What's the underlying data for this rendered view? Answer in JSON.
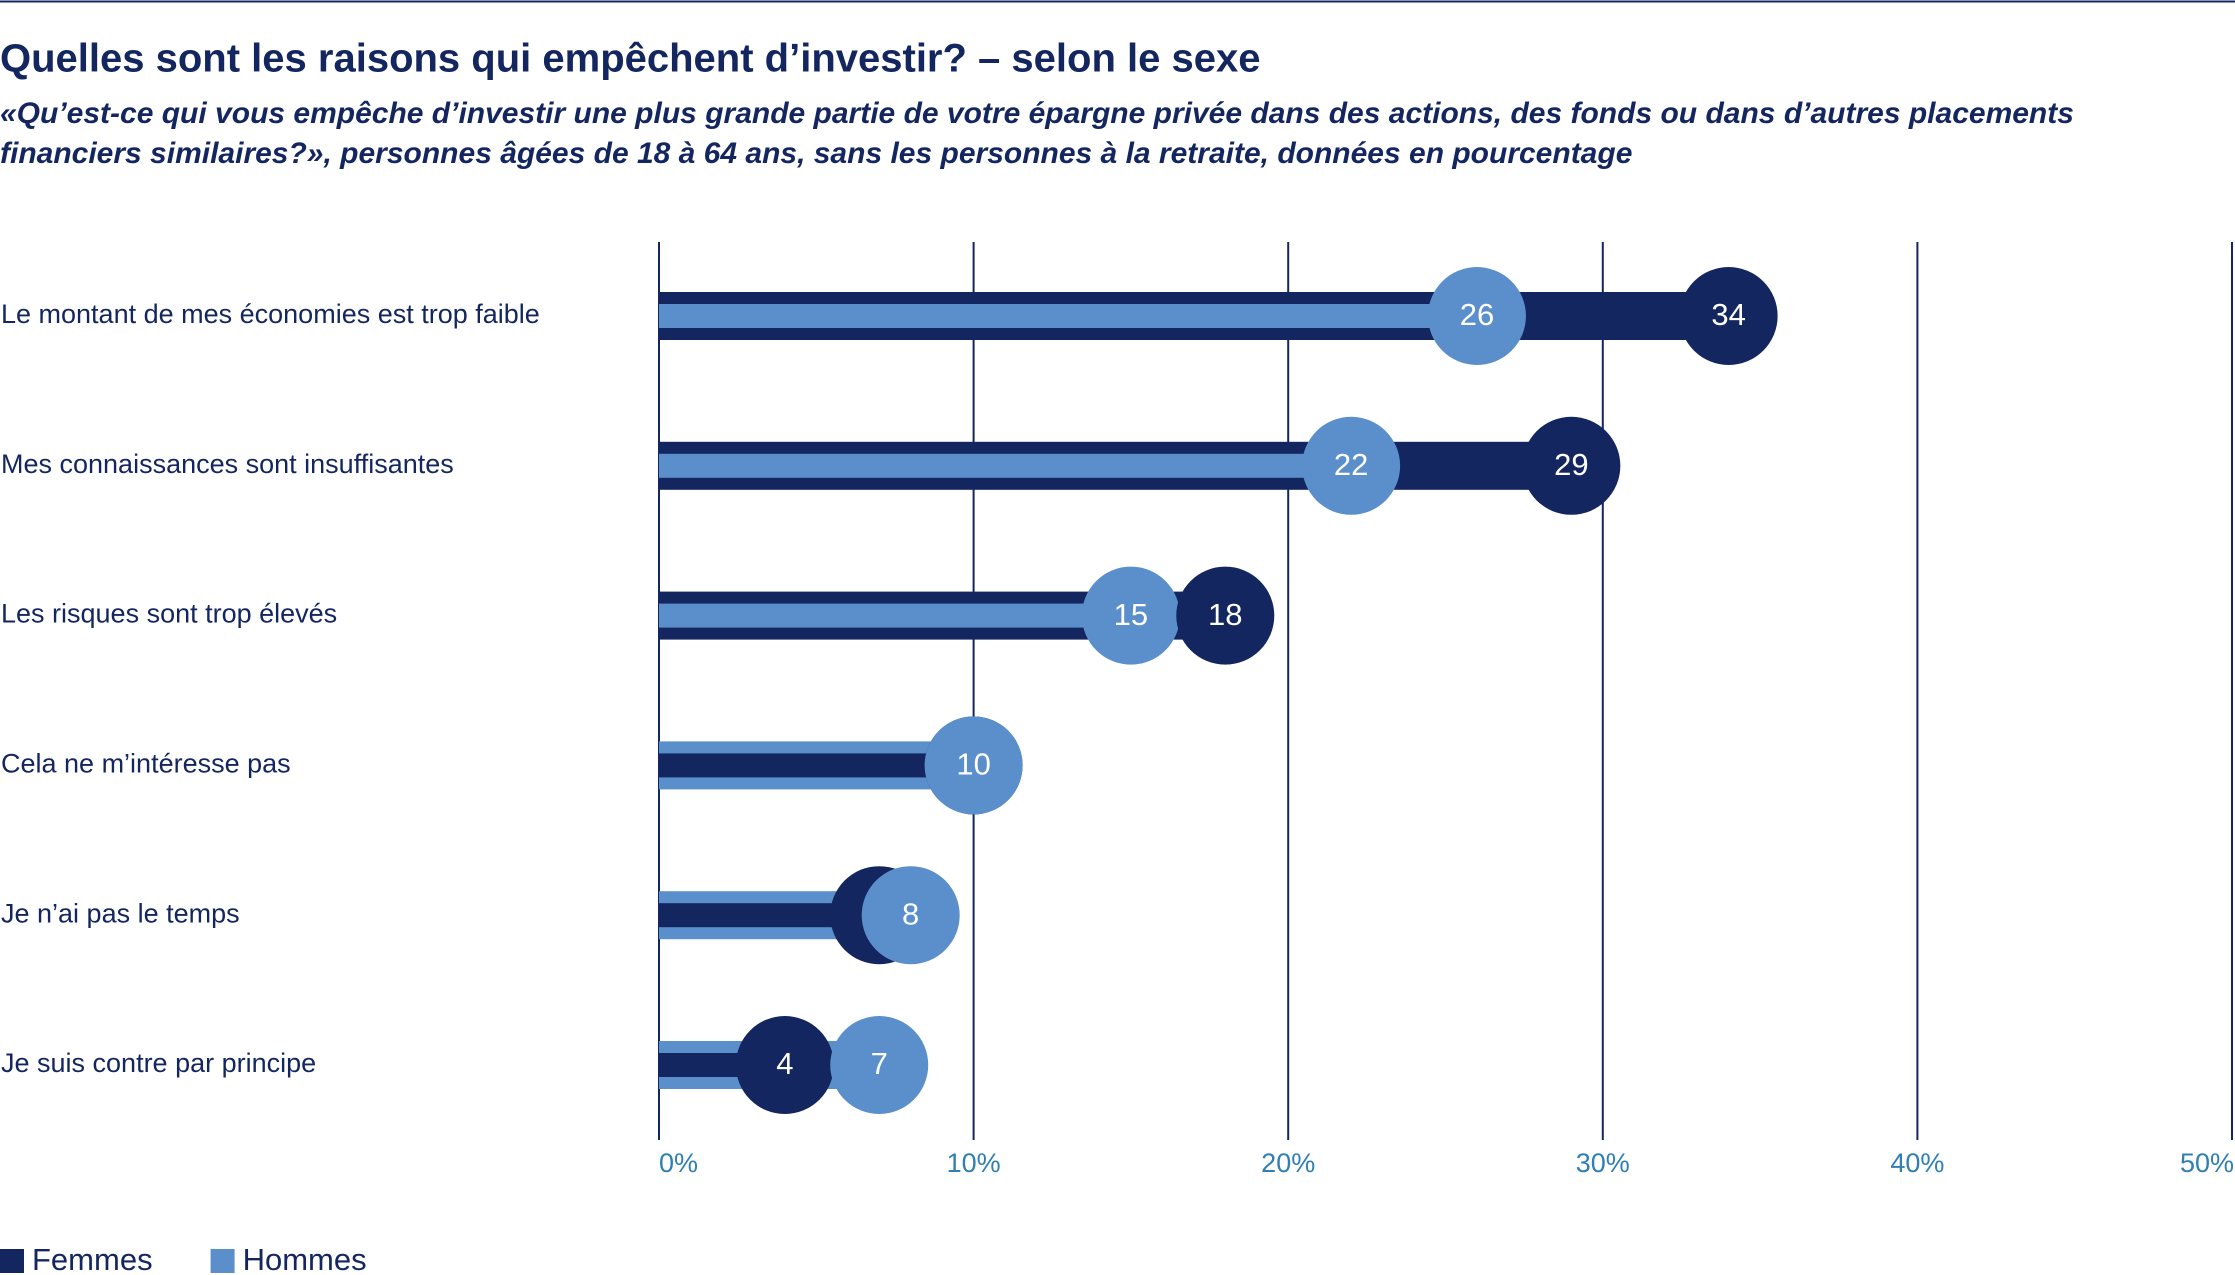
{
  "chart_data": {
    "type": "dot-bar",
    "title": "Quelles sont les raisons qui empêchent d’investir? – selon le sexe",
    "subtitle": [
      "«Qu’est-ce qui vous empêche d’investir une plus grande partie de votre épargne privée dans des actions, des fonds ou dans d’autres placements",
      "financiers similaires?», personnes âgées de 18 à 64 ans, sans les personnes à la retraite, données en pourcentage"
    ],
    "categories": [
      "Le montant de mes économies est trop faible",
      "Mes connaissances sont insuffisantes",
      "Les risques sont trop élevés",
      "Cela ne m’intéresse pas",
      "Je n’ai pas le temps",
      "Je suis contre par principe"
    ],
    "series": [
      {
        "name": "Femmes",
        "color": "#14265f",
        "values": [
          34,
          29,
          18,
          10,
          7,
          4
        ]
      },
      {
        "name": "Hommes",
        "color": "#5a8fcb",
        "values": [
          26,
          22,
          15,
          10,
          8,
          7
        ]
      }
    ],
    "xlim": [
      0,
      50
    ],
    "xticks": [
      {
        "value": 0,
        "label": "0%"
      },
      {
        "value": 10,
        "label": "10%"
      },
      {
        "value": 20,
        "label": "20%"
      },
      {
        "value": 30,
        "label": "30%"
      },
      {
        "value": 40,
        "label": "40%"
      },
      {
        "value": 50,
        "label": "50%"
      }
    ],
    "grid": true,
    "legend": "bottom-left"
  }
}
